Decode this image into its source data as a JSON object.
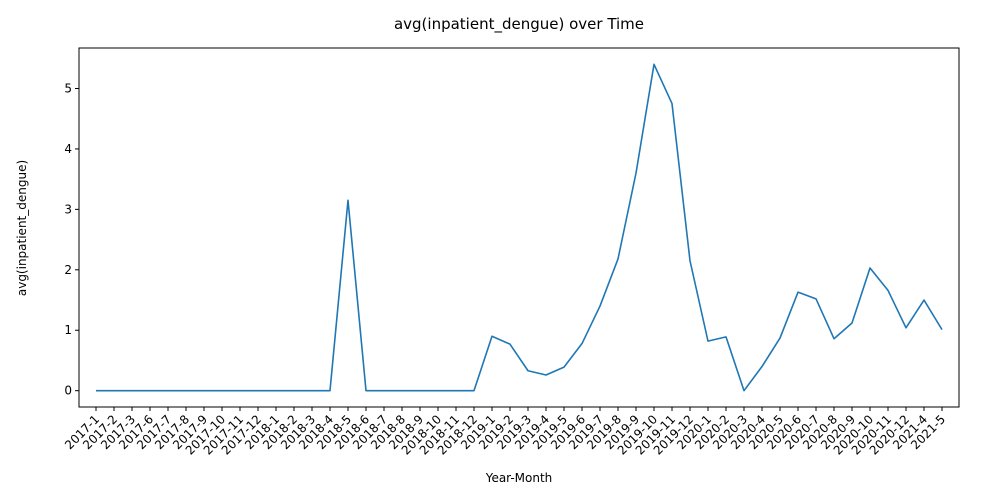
{
  "chart_data": {
    "type": "line",
    "title": "avg(inpatient_dengue) over Time",
    "xlabel": "Year-Month",
    "ylabel": "avg(inpatient_dengue)",
    "ylim": [
      -0.27,
      5.67
    ],
    "yticks": [
      0,
      1,
      2,
      3,
      4,
      5
    ],
    "grid": false,
    "legend": "none",
    "line_color": "#1f77b4",
    "categories": [
      "2017-1",
      "2017-2",
      "2017-3",
      "2017-6",
      "2017-7",
      "2017-8",
      "2017-9",
      "2017-10",
      "2017-11",
      "2017-12",
      "2018-1",
      "2018-2",
      "2018-3",
      "2018-4",
      "2018-5",
      "2018-6",
      "2018-7",
      "2018-8",
      "2018-9",
      "2018-10",
      "2018-11",
      "2018-12",
      "2019-1",
      "2019-2",
      "2019-3",
      "2019-4",
      "2019-5",
      "2019-6",
      "2019-7",
      "2019-8",
      "2019-9",
      "2019-10",
      "2019-11",
      "2019-12",
      "2020-1",
      "2020-2",
      "2020-3",
      "2020-4",
      "2020-5",
      "2020-6",
      "2020-7",
      "2020-8",
      "2020-9",
      "2020-10",
      "2020-11",
      "2020-12",
      "2021-4",
      "2021-5"
    ],
    "values": [
      0,
      0,
      0,
      0,
      0,
      0,
      0,
      0,
      0,
      0,
      0,
      0,
      0,
      0,
      3.15,
      0,
      0,
      0,
      0,
      0,
      0,
      0,
      0.9,
      0.77,
      0.33,
      0.26,
      0.39,
      0.78,
      1.4,
      2.18,
      3.6,
      5.4,
      4.75,
      2.15,
      0.82,
      0.89,
      0,
      0.4,
      0.87,
      1.63,
      1.52,
      0.86,
      1.12,
      2.03,
      1.66,
      1.04,
      1.5,
      1.01
    ]
  }
}
